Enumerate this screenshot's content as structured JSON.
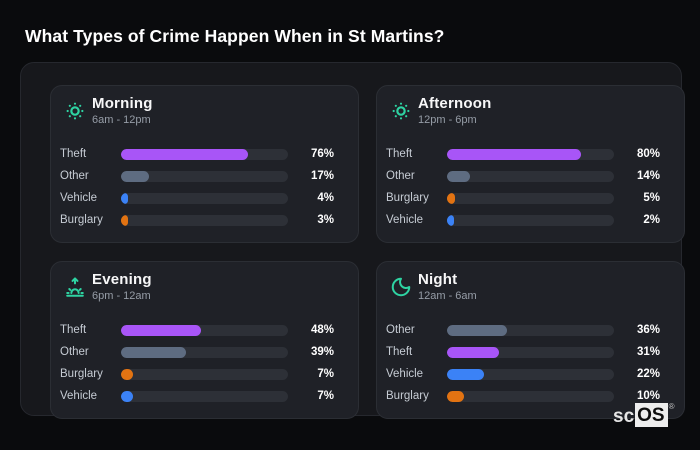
{
  "page": {
    "title": "What Types of Crime Happen When in St Martins?"
  },
  "brand": {
    "prefix": "sc",
    "box": "OS",
    "registered_mark": "®"
  },
  "colors": {
    "accent_teal": "#2ed3a2",
    "theft_purple": "#a855f7",
    "other_slate": "#5e6c81",
    "vehicle_blue": "#3b82f6",
    "burglary_orange": "#e27312",
    "bar_track": "#2d3037",
    "panel_bg": "#1f2127",
    "container_bg": "#17181c",
    "page_bg": "#0a0b0d"
  },
  "chart_data": [
    {
      "type": "bar",
      "orientation": "horizontal",
      "title": "Morning",
      "subtitle": "6am - 12pm",
      "icon": "sun-dim-icon",
      "xlim": [
        0,
        100
      ],
      "grid": false,
      "categories": [
        "Theft",
        "Other",
        "Vehicle",
        "Burglary"
      ],
      "values": [
        76,
        17,
        4,
        3
      ],
      "value_labels": [
        "76%",
        "17%",
        "4%",
        "3%"
      ],
      "bar_colors": [
        "#a855f7",
        "#5e6c81",
        "#3b82f6",
        "#e27312"
      ]
    },
    {
      "type": "bar",
      "orientation": "horizontal",
      "title": "Afternoon",
      "subtitle": "12pm - 6pm",
      "icon": "sun-dim-icon",
      "xlim": [
        0,
        100
      ],
      "grid": false,
      "categories": [
        "Theft",
        "Other",
        "Burglary",
        "Vehicle"
      ],
      "values": [
        80,
        14,
        5,
        2
      ],
      "value_labels": [
        "80%",
        "14%",
        "5%",
        "2%"
      ],
      "bar_colors": [
        "#a855f7",
        "#5e6c81",
        "#e27312",
        "#3b82f6"
      ]
    },
    {
      "type": "bar",
      "orientation": "horizontal",
      "title": "Evening",
      "subtitle": "6pm - 12am",
      "icon": "sunrise-icon",
      "xlim": [
        0,
        100
      ],
      "grid": false,
      "categories": [
        "Theft",
        "Other",
        "Burglary",
        "Vehicle"
      ],
      "values": [
        48,
        39,
        7,
        7
      ],
      "value_labels": [
        "48%",
        "39%",
        "7%",
        "7%"
      ],
      "bar_colors": [
        "#a855f7",
        "#5e6c81",
        "#e27312",
        "#3b82f6"
      ]
    },
    {
      "type": "bar",
      "orientation": "horizontal",
      "title": "Night",
      "subtitle": "12am - 6am",
      "icon": "moon-icon",
      "xlim": [
        0,
        100
      ],
      "grid": false,
      "categories": [
        "Other",
        "Theft",
        "Vehicle",
        "Burglary"
      ],
      "values": [
        36,
        31,
        22,
        10
      ],
      "value_labels": [
        "36%",
        "31%",
        "22%",
        "10%"
      ],
      "bar_colors": [
        "#5e6c81",
        "#a855f7",
        "#3b82f6",
        "#e27312"
      ]
    }
  ]
}
